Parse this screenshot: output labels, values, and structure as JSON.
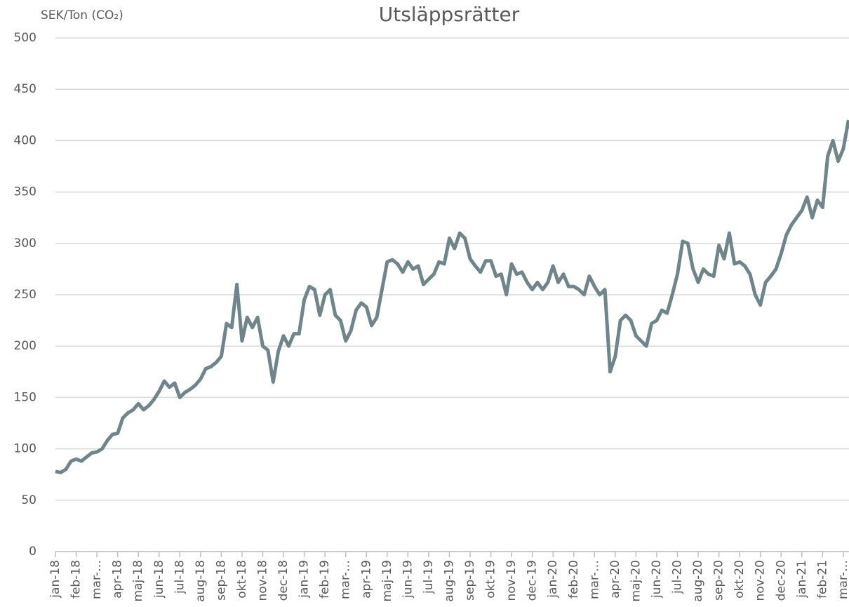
{
  "chart_data": {
    "type": "line",
    "title": "Utsläppsrätter",
    "y_label": "SEK/Ton (CO₂)",
    "categories": [
      "jan-18",
      null,
      null,
      null,
      "feb-18",
      null,
      null,
      null,
      "mar-…",
      null,
      null,
      null,
      "apr-18",
      null,
      null,
      null,
      "maj-18",
      null,
      null,
      null,
      "jun-18",
      null,
      null,
      null,
      "jul-18",
      null,
      null,
      null,
      "aug-18",
      null,
      null,
      null,
      "sep-18",
      null,
      null,
      null,
      "okt-18",
      null,
      null,
      null,
      "nov-18",
      null,
      null,
      null,
      "dec-18",
      null,
      null,
      null,
      "jan-19",
      null,
      null,
      null,
      "feb-19",
      null,
      null,
      null,
      "mar-…",
      null,
      null,
      null,
      "apr-19",
      null,
      null,
      null,
      "maj-19",
      null,
      null,
      null,
      "jun-19",
      null,
      null,
      null,
      "jul-19",
      null,
      null,
      null,
      "aug-19",
      null,
      null,
      null,
      "sep-19",
      null,
      null,
      null,
      "okt-19",
      null,
      null,
      null,
      "nov-19",
      null,
      null,
      null,
      "dec-19",
      null,
      null,
      null,
      "jan-20",
      null,
      null,
      null,
      "feb-20",
      null,
      null,
      null,
      "mar-…",
      null,
      null,
      null,
      "apr-20",
      null,
      null,
      null,
      "maj-20",
      null,
      null,
      null,
      "jun-20",
      null,
      null,
      null,
      "jul-20",
      null,
      null,
      null,
      "aug-20",
      null,
      null,
      null,
      "sep-20",
      null,
      null,
      null,
      "okt-20",
      null,
      null,
      null,
      "nov-20",
      null,
      null,
      null,
      "dec-20",
      null,
      null,
      null,
      "jan-21",
      null,
      null,
      null,
      "feb-21",
      null,
      null,
      null,
      "mar-…",
      null
    ],
    "values": [
      78,
      77,
      80,
      88,
      90,
      88,
      92,
      96,
      97,
      100,
      108,
      114,
      115,
      130,
      135,
      138,
      144,
      138,
      142,
      148,
      156,
      166,
      160,
      164,
      150,
      155,
      158,
      162,
      168,
      178,
      180,
      184,
      190,
      222,
      218,
      260,
      205,
      228,
      218,
      228,
      200,
      196,
      165,
      195,
      210,
      200,
      212,
      212,
      245,
      258,
      255,
      230,
      250,
      255,
      230,
      225,
      205,
      215,
      235,
      242,
      238,
      220,
      228,
      255,
      282,
      284,
      280,
      272,
      282,
      275,
      278,
      260,
      265,
      270,
      282,
      280,
      305,
      295,
      310,
      305,
      285,
      278,
      272,
      283,
      283,
      268,
      270,
      250,
      280,
      270,
      272,
      262,
      255,
      262,
      255,
      262,
      278,
      262,
      270,
      258,
      258,
      255,
      250,
      268,
      258,
      250,
      255,
      175,
      190,
      225,
      230,
      225,
      210,
      205,
      200,
      222,
      225,
      235,
      232,
      250,
      270,
      302,
      300,
      275,
      262,
      275,
      270,
      268,
      298,
      285,
      310,
      280,
      282,
      278,
      270,
      250,
      240,
      262,
      268,
      275,
      290,
      308,
      318,
      325,
      332,
      345,
      325,
      342,
      335,
      385,
      400,
      380,
      392,
      420
    ],
    "color": "#6f8589",
    "ylim": [
      0,
      500
    ],
    "yticks": [
      0,
      50,
      100,
      150,
      200,
      250,
      300,
      350,
      400,
      450,
      500
    ],
    "grid": true
  }
}
